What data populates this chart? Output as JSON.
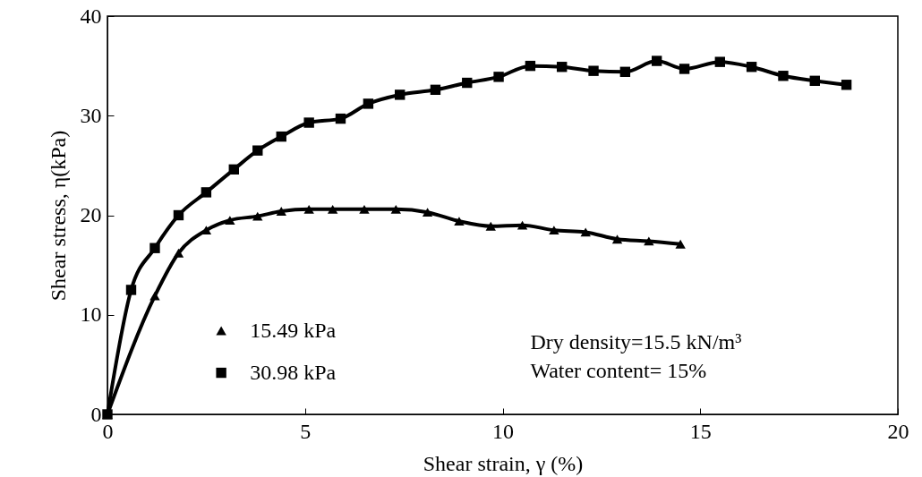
{
  "chart_data": {
    "type": "line",
    "xlabel": "Shear strain, γ (%)",
    "ylabel": "Shear stress, η(kPa)",
    "xlim": [
      0,
      20
    ],
    "xticks": [
      0,
      5,
      10,
      15,
      20
    ],
    "ylim": [
      0,
      40
    ],
    "yticks": [
      0,
      10,
      20,
      30,
      40
    ],
    "grid": false,
    "legend": "bottom",
    "line_style": "solid",
    "annotations": [
      "Dry density=15.5 kN/m³",
      "Water content= 15%"
    ],
    "series": [
      {
        "name": "15.49 kPa",
        "color": "#000000",
        "marker": "triangle",
        "x": [
          0,
          1.2,
          1.8,
          2.5,
          3.1,
          3.8,
          4.4,
          5.1,
          5.7,
          6.5,
          7.3,
          8.1,
          8.9,
          9.7,
          10.5,
          11.3,
          12.1,
          12.9,
          13.7,
          14.5
        ],
        "values": [
          0,
          11.9,
          16.2,
          18.5,
          19.5,
          19.9,
          20.4,
          20.6,
          20.6,
          20.6,
          20.6,
          20.3,
          19.4,
          18.9,
          19.0,
          18.5,
          18.3,
          17.6,
          17.4,
          17.1
        ]
      },
      {
        "name": "30.98 kPa",
        "color": "#000000",
        "marker": "square",
        "x": [
          0,
          0.6,
          1.2,
          1.8,
          2.5,
          3.2,
          3.8,
          4.4,
          5.1,
          5.9,
          6.6,
          7.4,
          8.3,
          9.1,
          9.9,
          10.7,
          11.5,
          12.3,
          13.1,
          13.9,
          14.6,
          15.5,
          16.3,
          17.1,
          17.9,
          18.7
        ],
        "values": [
          0,
          12.5,
          16.7,
          20.0,
          22.3,
          24.6,
          26.5,
          27.9,
          29.3,
          29.7,
          31.2,
          32.1,
          32.6,
          33.3,
          33.9,
          35.0,
          34.9,
          34.5,
          34.4,
          35.5,
          34.7,
          35.4,
          34.9,
          34.0,
          33.5,
          33.1
        ]
      }
    ]
  }
}
